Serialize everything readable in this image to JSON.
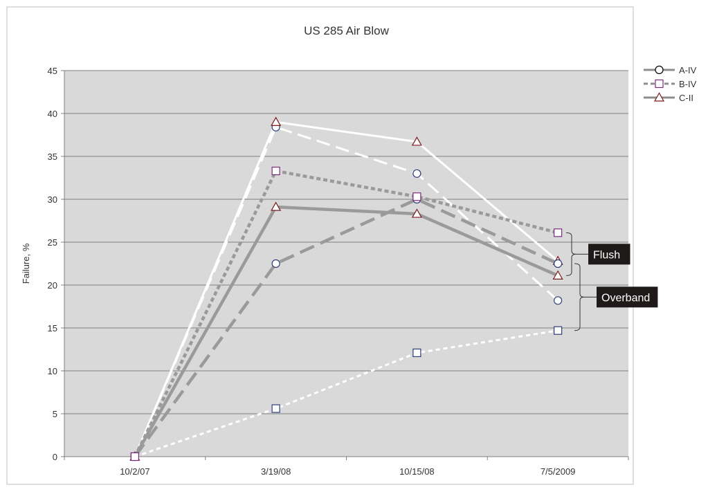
{
  "chart_data": {
    "type": "line",
    "title": "US 285   Air Blow",
    "xlabel": "",
    "ylabel": "Failure, %",
    "ylim": [
      0,
      45
    ],
    "yticks": [
      0,
      5,
      10,
      15,
      20,
      25,
      30,
      35,
      40,
      45
    ],
    "categories": [
      "10/2/07",
      "3/19/08",
      "10/15/08",
      "7/5/2009"
    ],
    "grid": "horizontal",
    "legend_position": "right",
    "series": [
      {
        "name": "A-IV",
        "group": "Flush",
        "marker": "circle",
        "dash": "long-dash",
        "color": "#ffffff",
        "values": [
          0,
          38.4,
          33.0,
          18.2
        ]
      },
      {
        "name": "C-II",
        "group": "Flush",
        "marker": "triangle",
        "dash": "solid",
        "color": "#ffffff",
        "values": [
          0,
          39.0,
          36.7,
          22.8
        ]
      },
      {
        "name": "B-IV",
        "group": "Flush",
        "marker": "square",
        "dash": "dotted",
        "color": "#ffffff",
        "values": [
          0,
          5.6,
          12.1,
          14.7
        ]
      },
      {
        "name": "A-IV",
        "group": "Overband",
        "marker": "circle",
        "dash": "long-dash",
        "color": "#9a9a9a",
        "values": [
          0,
          22.5,
          30.0,
          22.5
        ]
      },
      {
        "name": "C-II",
        "group": "Overband",
        "marker": "triangle",
        "dash": "solid",
        "color": "#9a9a9a",
        "values": [
          0,
          29.1,
          28.3,
          21.1
        ]
      },
      {
        "name": "B-IV",
        "group": "Overband",
        "marker": "square",
        "dash": "dotted",
        "color": "#9a9a9a",
        "values": [
          0,
          33.3,
          30.3,
          26.1
        ]
      }
    ],
    "legend": [
      {
        "name": "A-IV",
        "marker": "circle",
        "dash": "solid"
      },
      {
        "name": "B-IV",
        "marker": "square",
        "dash": "dashed"
      },
      {
        "name": "C-II",
        "marker": "triangle",
        "dash": "solid"
      }
    ],
    "annotations": [
      {
        "label": "Flush",
        "range": [
          21.1,
          26.1
        ]
      },
      {
        "label": "Overband",
        "range": [
          14.7,
          22.5
        ]
      }
    ],
    "colors": {
      "plot_background": "#d9d9d9",
      "circle_marker": "#2e3c7a",
      "square_marker_blue": "#2e3c7a",
      "square_marker_purple": "#7b2a7b",
      "triangle_marker": "#7a1a1a",
      "flush_line": "#ffffff",
      "overband_line": "#9a9a9a"
    }
  }
}
